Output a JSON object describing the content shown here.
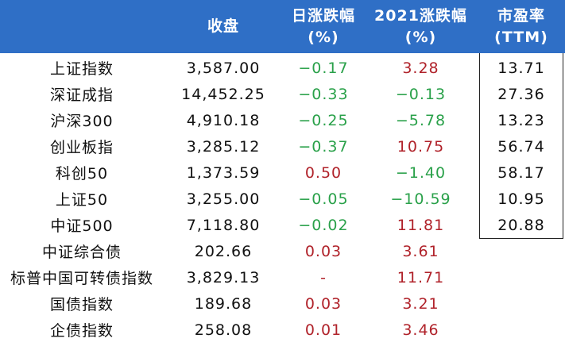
{
  "header": {
    "close": [
      "收盘"
    ],
    "day_change": [
      "日涨跌幅",
      "(%)"
    ],
    "ytd_change": [
      "2021涨跌幅",
      "(%)"
    ],
    "pe": [
      "市盈率",
      "(TTM)"
    ]
  },
  "rows": [
    {
      "name": "上证指数",
      "close": "3,587.00",
      "day": "−0.17",
      "day_sign": "neg",
      "ytd": "3.28",
      "ytd_sign": "pos",
      "pe": "13.71"
    },
    {
      "name": "深证成指",
      "close": "14,452.25",
      "day": "−0.33",
      "day_sign": "neg",
      "ytd": "−0.13",
      "ytd_sign": "neg",
      "pe": "27.36"
    },
    {
      "name": "沪深300",
      "close": "4,910.18",
      "day": "−0.25",
      "day_sign": "neg",
      "ytd": "−5.78",
      "ytd_sign": "neg",
      "pe": "13.23"
    },
    {
      "name": "创业板指",
      "close": "3,285.12",
      "day": "−0.37",
      "day_sign": "neg",
      "ytd": "10.75",
      "ytd_sign": "pos",
      "pe": "56.74"
    },
    {
      "name": "科创50",
      "close": "1,373.59",
      "day": "0.50",
      "day_sign": "pos",
      "ytd": "−1.40",
      "ytd_sign": "neg",
      "pe": "58.17"
    },
    {
      "name": "上证50",
      "close": "3,255.00",
      "day": "−0.05",
      "day_sign": "neg",
      "ytd": "−10.59",
      "ytd_sign": "neg",
      "pe": "10.95"
    },
    {
      "name": "中证500",
      "close": "7,118.80",
      "day": "−0.02",
      "day_sign": "neg",
      "ytd": "11.81",
      "ytd_sign": "pos",
      "pe": "20.88"
    },
    {
      "name": "中证综合债",
      "close": "202.66",
      "day": "0.03",
      "day_sign": "pos",
      "ytd": "3.61",
      "ytd_sign": "pos",
      "pe": ""
    },
    {
      "name": "标普中国可转债指数",
      "close": "3,829.13",
      "day": "-",
      "day_sign": "pos",
      "ytd": "11.71",
      "ytd_sign": "pos",
      "pe": ""
    },
    {
      "name": "国债指数",
      "close": "189.68",
      "day": "0.03",
      "day_sign": "pos",
      "ytd": "3.21",
      "ytd_sign": "pos",
      "pe": ""
    },
    {
      "name": "企债指数",
      "close": "258.08",
      "day": "0.01",
      "day_sign": "pos",
      "ytd": "3.46",
      "ytd_sign": "pos",
      "pe": ""
    }
  ],
  "colors": {
    "header_bg": "#2f6fc6",
    "positive": "#b0222a",
    "negative": "#2aa14a"
  }
}
